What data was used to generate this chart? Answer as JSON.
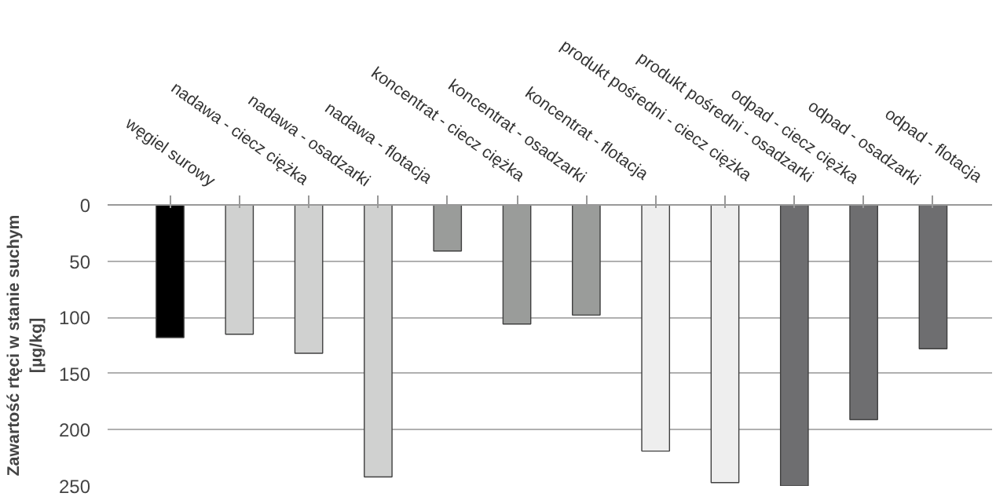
{
  "chart_data": {
    "type": "bar",
    "ylabel": "Zawartość rtęci w stanie suchym\n[µg/kg]",
    "categories": [
      "węgiel surowy",
      "nadawa - ciecz ciężka",
      "nadawa - osadzarki",
      "nadawa - flotacja",
      "koncentrat - ciecz ciężka",
      "koncentrat - osadzarki",
      "koncentrat - flotacja",
      "produkt pośredni - ciecz ciężka",
      "produkt pośredni - osadzarki",
      "odpad - ciecz ciężka",
      "odpad - osadzarki",
      "odpad - flotacja"
    ],
    "values": [
      118,
      115,
      132,
      242,
      41,
      106,
      98,
      219,
      247,
      250,
      191,
      128
    ],
    "colors": [
      "#000000",
      "#d0d1d0",
      "#d0d1d0",
      "#d0d1d0",
      "#9a9c9a",
      "#9a9c9a",
      "#9a9c9a",
      "#eeeeee",
      "#eeeeee",
      "#6e6e70",
      "#6e6e70",
      "#6e6e70"
    ],
    "ylim": [
      250,
      0
    ],
    "yticks": [
      0,
      50,
      100,
      150,
      200,
      250
    ],
    "grid": "y"
  }
}
